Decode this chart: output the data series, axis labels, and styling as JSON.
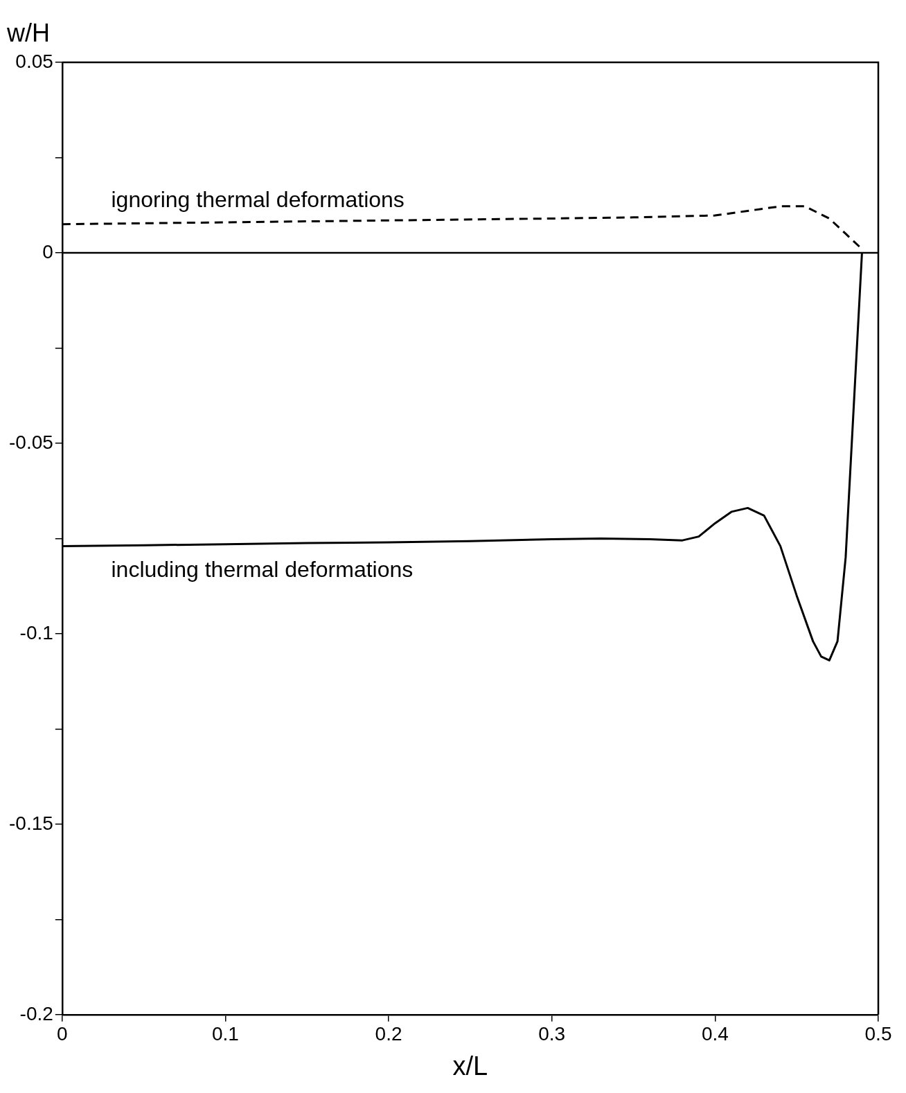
{
  "chart_data": {
    "type": "line",
    "xlabel": "x/L",
    "ylabel": "w/H",
    "xlim": [
      0,
      0.5
    ],
    "xticks": [
      0,
      0.1,
      0.2,
      0.3,
      0.4,
      0.5
    ],
    "ylim": [
      -0.2,
      0.05
    ],
    "yticks": [
      -0.2,
      {
        "value": -0.175,
        "label": null
      },
      -0.15,
      {
        "value": -0.125,
        "label": null
      },
      -0.1,
      {
        "value": -0.075,
        "label": null
      },
      -0.05,
      {
        "value": -0.025,
        "label": null
      },
      0,
      {
        "value": 0.025,
        "label": null
      },
      0.05
    ],
    "grid": false,
    "legend": false,
    "marker": "none",
    "ref_lines": [
      {
        "axis": "y",
        "value": 0,
        "color": "#000000",
        "line_style": "solid"
      }
    ],
    "series": [
      {
        "name": "ignoring thermal deformations",
        "color": "#000000",
        "line_style": "dashed",
        "x": [
          0,
          0.1,
          0.2,
          0.3,
          0.35,
          0.4,
          0.42,
          0.44,
          0.455,
          0.47,
          0.48,
          0.49
        ],
        "values": [
          0.0075,
          0.008,
          0.0085,
          0.009,
          0.0093,
          0.0098,
          0.011,
          0.0122,
          0.0122,
          0.009,
          0.005,
          0.001
        ]
      },
      {
        "name": "including thermal deformations",
        "color": "#000000",
        "line_style": "solid",
        "x": [
          0,
          0.05,
          0.1,
          0.15,
          0.2,
          0.25,
          0.3,
          0.33,
          0.36,
          0.38,
          0.39,
          0.4,
          0.41,
          0.42,
          0.43,
          0.44,
          0.45,
          0.46,
          0.465,
          0.47,
          0.475,
          0.48,
          0.485,
          0.49
        ],
        "values": [
          -0.077,
          -0.0768,
          -0.0765,
          -0.0762,
          -0.076,
          -0.0757,
          -0.0752,
          -0.075,
          -0.0752,
          -0.0755,
          -0.0745,
          -0.071,
          -0.068,
          -0.067,
          -0.069,
          -0.077,
          -0.09,
          -0.102,
          -0.106,
          -0.107,
          -0.102,
          -0.08,
          -0.04,
          0
        ]
      }
    ]
  }
}
